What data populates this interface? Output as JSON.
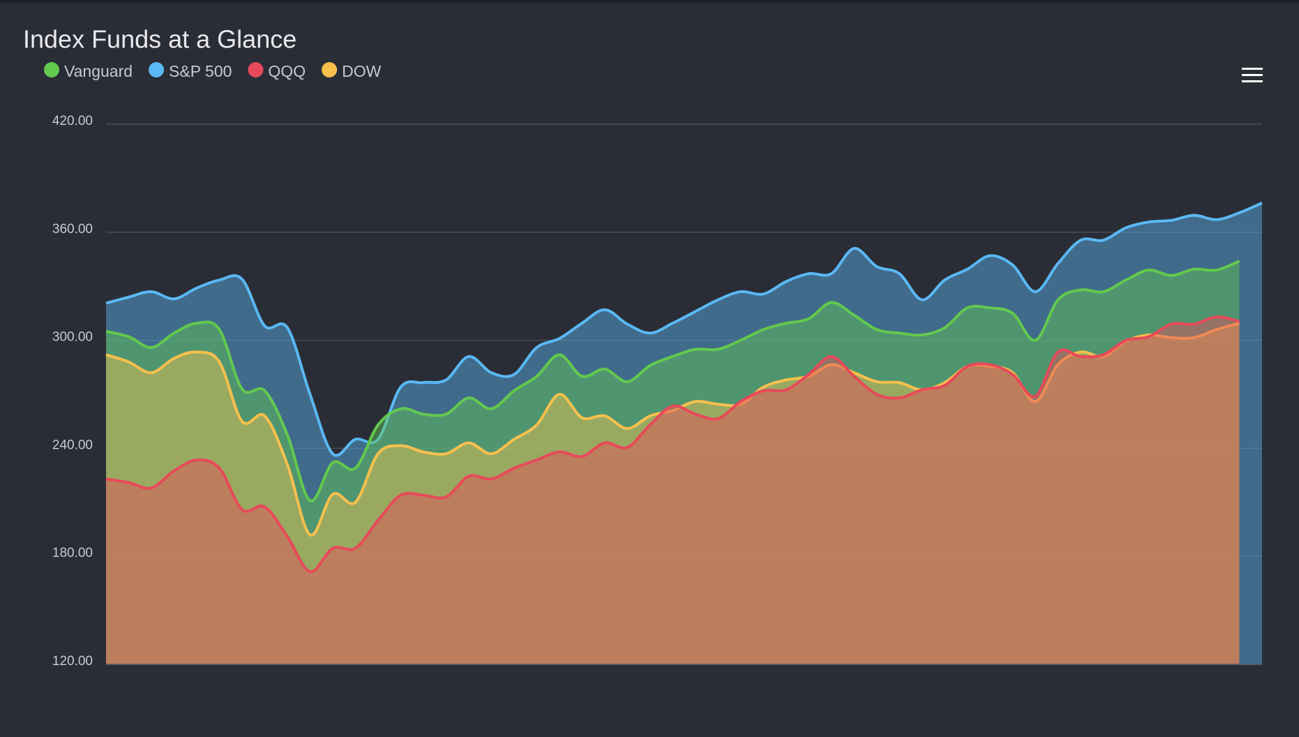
{
  "chart_data": {
    "type": "area",
    "title": "Index Funds at a Glance",
    "series": [
      {
        "name": "Vanguard",
        "color": "#62c94e",
        "values": [
          305,
          302,
          296,
          304,
          309.5,
          306,
          273,
          272,
          247.5,
          211,
          232,
          229,
          253,
          262,
          259,
          259,
          268,
          262,
          272,
          280,
          292,
          280,
          284,
          277,
          286,
          291,
          295,
          295,
          300,
          306,
          309.5,
          312,
          321,
          314,
          306,
          304,
          303,
          307,
          318,
          318,
          315,
          300,
          322.5,
          328,
          327,
          333.5,
          339,
          336,
          339.5,
          339,
          344,
          null
        ]
      },
      {
        "name": "S&P 500",
        "color": "#5ab8f5",
        "values": [
          320.6,
          324,
          327,
          323,
          329,
          333.5,
          334,
          308,
          307,
          270,
          237,
          245,
          245,
          274,
          276.5,
          278,
          291,
          282,
          281,
          296,
          301,
          309.5,
          317,
          309,
          304,
          309.5,
          316,
          322.5,
          327,
          325.7,
          332.6,
          337,
          337,
          351,
          341,
          337,
          322.5,
          333.5,
          339.5,
          347,
          341.8,
          327,
          342.7,
          355.6,
          355.6,
          362.5,
          365.7,
          366.6,
          369.4,
          367,
          370.8,
          376.3
        ]
      },
      {
        "name": "QQQ",
        "color": "#e8495a",
        "values": [
          223,
          221,
          218,
          227.5,
          233.5,
          229,
          206,
          207.5,
          191,
          171.5,
          184.5,
          184.5,
          200,
          214,
          214,
          213,
          224.5,
          223,
          229,
          233.5,
          238,
          235.5,
          243,
          240.5,
          253,
          263.5,
          259,
          256.5,
          266,
          272,
          272.5,
          281,
          291,
          280,
          270,
          268,
          272.5,
          275,
          285.5,
          286.5,
          281,
          269,
          293.5,
          291,
          292,
          300,
          302,
          309,
          309,
          313,
          310.5,
          null
        ]
      },
      {
        "name": "DOW",
        "color": "#f7c04d",
        "values": [
          292,
          288,
          282,
          290,
          293.5,
          288,
          255,
          258,
          231,
          192,
          214.5,
          210,
          237,
          241.5,
          238,
          237,
          243,
          237,
          245,
          253,
          270,
          257,
          258,
          251,
          258,
          261,
          266,
          264.5,
          264.5,
          274,
          278,
          280,
          286.5,
          282,
          277,
          276.5,
          272.5,
          276.5,
          285.5,
          285.5,
          282,
          266,
          286.5,
          293.5,
          291,
          299.5,
          303,
          301.5,
          301.5,
          306,
          309.5,
          null
        ]
      }
    ],
    "ylim": [
      120,
      420
    ],
    "yticks": [
      {
        "value": 120,
        "label": "120.00"
      },
      {
        "value": 180,
        "label": "180.00"
      },
      {
        "value": 240,
        "label": "240.00"
      },
      {
        "value": 300,
        "label": "300.00"
      },
      {
        "value": 360,
        "label": "360.00"
      },
      {
        "value": 420,
        "label": "420.00"
      }
    ],
    "grid": true,
    "legend": "top-left"
  }
}
